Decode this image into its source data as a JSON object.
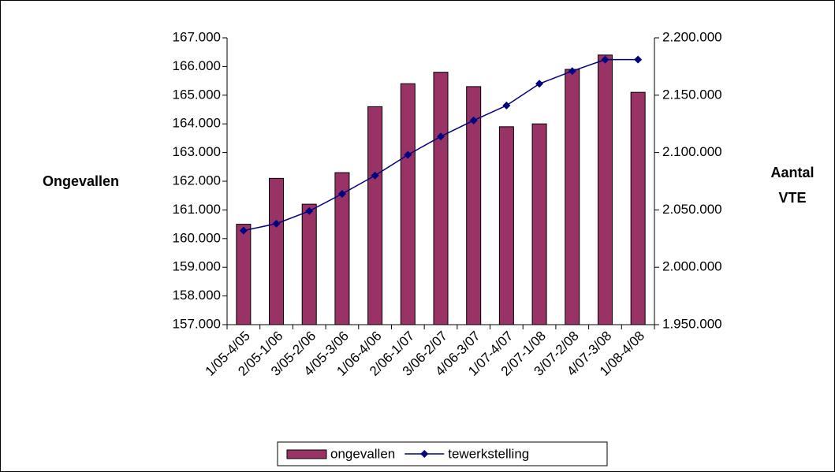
{
  "chart_data": {
    "type": "bar-line",
    "y_label": "Ongevallen",
    "y2_label": "Aantal VTE",
    "categories": [
      "1/05-4/05",
      "2/05-1/06",
      "3/05-2/06",
      "4/05-3/06",
      "1/06-4/06",
      "2/06-1/07",
      "3/06-2/07",
      "4/06-3/07",
      "1/07-4/07",
      "2/07-1/08",
      "3/07-2/08",
      "4/07-3/08",
      "1/08-4/08"
    ],
    "series": [
      {
        "name": "ongevallen",
        "type": "bar",
        "color": "#993366",
        "values": [
          160500,
          162100,
          161200,
          162300,
          164600,
          165400,
          165800,
          165300,
          163900,
          164000,
          165900,
          166400,
          165100
        ]
      },
      {
        "name": "tewerkstelling",
        "type": "line",
        "axis": "y2",
        "color": "#000080",
        "values": [
          2032000,
          2038000,
          2049000,
          2064000,
          2080000,
          2098000,
          2114000,
          2128000,
          2141000,
          2160000,
          2171000,
          2181000,
          2181000
        ]
      }
    ],
    "ylim": [
      157000,
      167000
    ],
    "yticks": [
      {
        "value": 157000,
        "label": "157.000"
      },
      {
        "value": 158000,
        "label": "158.000"
      },
      {
        "value": 159000,
        "label": "159.000"
      },
      {
        "value": 160000,
        "label": "160.000"
      },
      {
        "value": 161000,
        "label": "161.000"
      },
      {
        "value": 162000,
        "label": "162.000"
      },
      {
        "value": 163000,
        "label": "163.000"
      },
      {
        "value": 164000,
        "label": "164.000"
      },
      {
        "value": 165000,
        "label": "165.000"
      },
      {
        "value": 166000,
        "label": "166.000"
      },
      {
        "value": 167000,
        "label": "167.000"
      }
    ],
    "y2lim": [
      1950000,
      2200000
    ],
    "y2ticks": [
      {
        "value": 1950000,
        "label": "1.950.000"
      },
      {
        "value": 2000000,
        "label": "2.000.000"
      },
      {
        "value": 2050000,
        "label": "2.050.000"
      },
      {
        "value": 2100000,
        "label": "2.100.000"
      },
      {
        "value": 2150000,
        "label": "2.150.000"
      },
      {
        "value": 2200000,
        "label": "2.200.000"
      }
    ],
    "grid": false,
    "legend": "bottom"
  }
}
